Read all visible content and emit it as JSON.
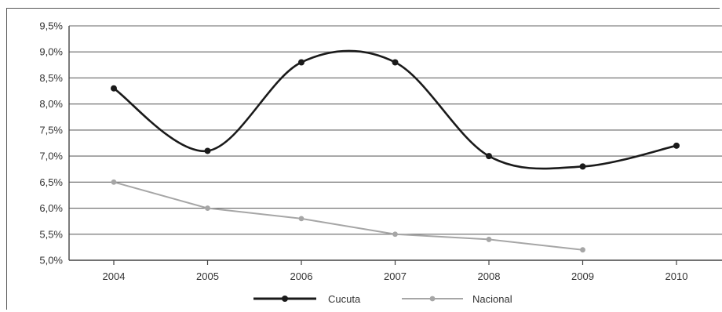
{
  "chart_data": {
    "type": "line",
    "x": [
      "2004",
      "2005",
      "2006",
      "2007",
      "2008",
      "2009",
      "2010"
    ],
    "yticks": [
      "5,0%",
      "5,5%",
      "6,0%",
      "6,5%",
      "7,0%",
      "7,5%",
      "8,0%",
      "8,5%",
      "9,0%",
      "9,5%"
    ],
    "ylim": [
      5.0,
      9.5
    ],
    "grid": true,
    "legend_position": "bottom",
    "series": [
      {
        "name": "Cucuta",
        "color": "#1a1a1a",
        "smooth": true,
        "values": [
          8.3,
          7.1,
          8.8,
          8.8,
          7.0,
          6.8,
          7.2
        ]
      },
      {
        "name": "Nacional",
        "color": "#a6a6a6",
        "smooth": false,
        "values": [
          6.5,
          6.0,
          5.8,
          5.5,
          5.4,
          5.2,
          null
        ]
      }
    ]
  }
}
